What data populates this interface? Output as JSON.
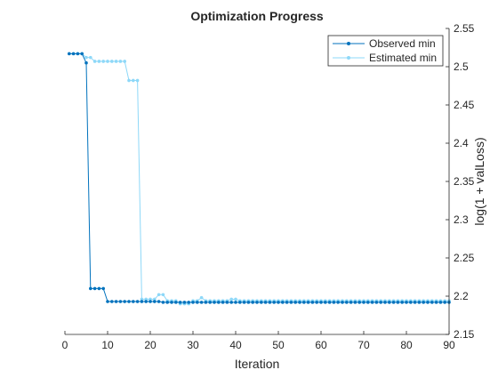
{
  "chart_data": {
    "type": "line",
    "title": "Optimization Progress",
    "xlabel": "Iteration",
    "ylabel": "log(1 + valLoss)",
    "xlim": [
      0,
      90
    ],
    "ylim": [
      2.15,
      2.55
    ],
    "xticks": [
      0,
      10,
      20,
      30,
      40,
      50,
      60,
      70,
      80,
      90
    ],
    "yticks": [
      2.15,
      2.2,
      2.25,
      2.3,
      2.35,
      2.4,
      2.45,
      2.5,
      2.55
    ],
    "y_axis_location": "right",
    "grid": false,
    "legend": {
      "location": "top-right",
      "entries": [
        "Observed min",
        "Estimated min"
      ]
    },
    "x": [
      1,
      2,
      3,
      4,
      5,
      6,
      7,
      8,
      9,
      10,
      11,
      12,
      13,
      14,
      15,
      16,
      17,
      18,
      19,
      20,
      21,
      22,
      23,
      24,
      25,
      26,
      27,
      28,
      29,
      30,
      31,
      32,
      33,
      34,
      35,
      36,
      37,
      38,
      39,
      40,
      41,
      42,
      43,
      44,
      45,
      46,
      47,
      48,
      49,
      50,
      51,
      52,
      53,
      54,
      55,
      56,
      57,
      58,
      59,
      60,
      61,
      62,
      63,
      64,
      65,
      66,
      67,
      68,
      69,
      70,
      71,
      72,
      73,
      74,
      75,
      76,
      77,
      78,
      79,
      80,
      81,
      82,
      83,
      84,
      85,
      86,
      87,
      88,
      89,
      90
    ],
    "series": [
      {
        "name": "Observed min",
        "color": "#0072bd",
        "values": [
          2.517,
          2.517,
          2.517,
          2.517,
          2.505,
          2.21,
          2.21,
          2.21,
          2.21,
          2.193,
          2.193,
          2.193,
          2.193,
          2.193,
          2.193,
          2.193,
          2.193,
          2.193,
          2.193,
          2.193,
          2.193,
          2.193,
          2.192,
          2.192,
          2.192,
          2.192,
          2.192,
          2.192,
          2.192,
          2.192,
          2.192,
          2.192,
          2.192,
          2.192,
          2.192,
          2.192,
          2.192,
          2.192,
          2.192,
          2.192,
          2.192,
          2.192,
          2.192,
          2.192,
          2.192,
          2.192,
          2.192,
          2.192,
          2.192,
          2.192,
          2.192,
          2.192,
          2.192,
          2.192,
          2.192,
          2.192,
          2.192,
          2.192,
          2.192,
          2.192,
          2.192,
          2.192,
          2.192,
          2.192,
          2.192,
          2.192,
          2.192,
          2.192,
          2.192,
          2.192,
          2.192,
          2.192,
          2.192,
          2.192,
          2.192,
          2.192,
          2.192,
          2.192,
          2.192,
          2.192,
          2.192,
          2.192,
          2.192,
          2.192,
          2.192,
          2.192,
          2.192,
          2.192,
          2.192,
          2.192
        ]
      },
      {
        "name": "Estimated min",
        "color": "#8ed8f8",
        "values": [
          2.517,
          2.517,
          2.517,
          2.517,
          2.512,
          2.512,
          2.507,
          2.507,
          2.507,
          2.507,
          2.507,
          2.507,
          2.507,
          2.507,
          2.482,
          2.482,
          2.482,
          2.196,
          2.196,
          2.196,
          2.196,
          2.202,
          2.202,
          2.194,
          2.194,
          2.194,
          2.19,
          2.19,
          2.19,
          2.194,
          2.194,
          2.198,
          2.194,
          2.194,
          2.194,
          2.194,
          2.194,
          2.194,
          2.196,
          2.196,
          2.194,
          2.194,
          2.194,
          2.194,
          2.194,
          2.194,
          2.194,
          2.194,
          2.194,
          2.194,
          2.194,
          2.194,
          2.194,
          2.194,
          2.194,
          2.194,
          2.194,
          2.194,
          2.194,
          2.194,
          2.194,
          2.194,
          2.194,
          2.194,
          2.194,
          2.194,
          2.194,
          2.194,
          2.194,
          2.194,
          2.194,
          2.194,
          2.194,
          2.194,
          2.194,
          2.194,
          2.194,
          2.194,
          2.194,
          2.194,
          2.194,
          2.194,
          2.194,
          2.194,
          2.194,
          2.194,
          2.194,
          2.194,
          2.194,
          2.194
        ]
      }
    ]
  }
}
